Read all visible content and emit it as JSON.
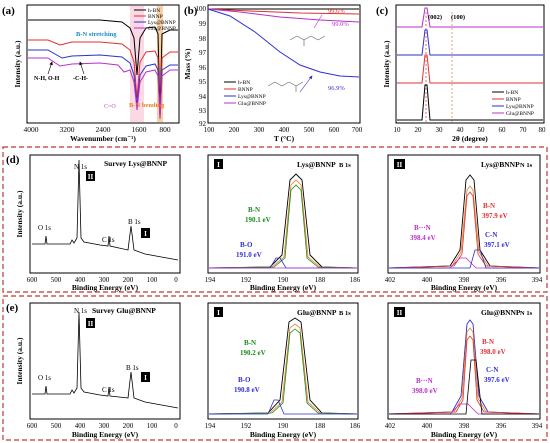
{
  "panels": {
    "a": {
      "label": "(a)",
      "xlabel": "Wavenumber (cm⁻¹)",
      "ylabel": "Intensity (a.u.)",
      "xticks": [
        "4000",
        "3200",
        "2400",
        "1600",
        "800"
      ],
      "annotations": {
        "bn_stretch": "B-N stretching",
        "bn_bend": "B-N bending",
        "nh_oh": "N-H, O-H",
        "ch": "-C-H-",
        "co": "C=O"
      },
      "legend": [
        "h-BN",
        "BNNP",
        "Lys@BNNP",
        "Glu@BNNP"
      ]
    },
    "b": {
      "label": "(b)",
      "xlabel": "T (°C)",
      "ylabel": "Mass (%)",
      "xticks": [
        "100",
        "200",
        "300",
        "400",
        "500",
        "600",
        "700"
      ],
      "yticks": [
        "100",
        "99",
        "98",
        "97",
        "96",
        "95",
        "94",
        "93",
        "92"
      ],
      "annotations": {
        "p1": "99.6%",
        "p2": "99.0%",
        "p3": "96.9%"
      },
      "legend": [
        "h-BN",
        "BNNP",
        "Lys@BNNP",
        "Glu@BNNP"
      ]
    },
    "c": {
      "label": "(c)",
      "xlabel": "2θ (degree)",
      "ylabel": "Intensity (a.u.)",
      "xticks": [
        "10",
        "20",
        "30",
        "40",
        "50",
        "60",
        "70",
        "80"
      ],
      "peaks": {
        "p002": "(002)",
        "p100": "(100)"
      },
      "legend": [
        "h-BN",
        "BNNP",
        "Lys@BNNP",
        "Glu@BNNP"
      ]
    },
    "d": {
      "label": "(d)"
    },
    "e": {
      "label": "(e)"
    }
  },
  "survey_d": {
    "title": "Survey Lys@BNNP",
    "xlabel": "Binding Energy (eV)",
    "ylabel": "Intensity (a.u.)",
    "xticks": [
      "600",
      "500",
      "400",
      "300",
      "200",
      "100",
      "0"
    ],
    "peaks": {
      "o": "O 1s",
      "n": "N 1s",
      "c": "C 1s",
      "b": "B 1s"
    },
    "box1": "I",
    "box2": "II"
  },
  "survey_e": {
    "title": "Survey Glu@BNNP",
    "xlabel": "Binding Energy (eV)",
    "ylabel": "Intensity (a.u.)",
    "xticks": [
      "600",
      "500",
      "400",
      "300",
      "200",
      "100",
      "0"
    ],
    "peaks": {
      "o": "O 1s",
      "n": "N 1s",
      "c": "C 1s",
      "b": "B 1s"
    },
    "box1": "I",
    "box2": "II"
  },
  "b1s_d": {
    "box": "I",
    "title": "Lys@BNNP",
    "sub": "B 1s",
    "xlabel": "Binding Energy (eV)",
    "xticks": [
      "194",
      "192",
      "190",
      "188",
      "186"
    ],
    "bn": "B-N",
    "bn_ev": "190.1 eV",
    "bo": "B-O",
    "bo_ev": "191.0 eV"
  },
  "b1s_e": {
    "box": "I",
    "title": "Glu@BNNP",
    "sub": "B 1s",
    "xlabel": "Binding Energy (eV)",
    "xticks": [
      "194",
      "192",
      "190",
      "188",
      "186"
    ],
    "bn": "B-N",
    "bn_ev": "190.2 eV",
    "bo": "B-O",
    "bo_ev": "190.8 eV"
  },
  "n1s_d": {
    "box": "II",
    "title": "Lys@BNNP",
    "sub": "N 1s",
    "xlabel": "Binding Energy (eV)",
    "xticks": [
      "402",
      "400",
      "398",
      "396",
      "394"
    ],
    "bn": "B-N",
    "bn_ev": "397.9 eV",
    "bhn": "B···N",
    "bhn_ev": "398.4 eV",
    "cn": "C-N",
    "cn_ev": "397.1 eV"
  },
  "n1s_e": {
    "box": "II",
    "title": "Glu@BNNP",
    "sub": "N 1s",
    "xlabel": "Binding Energy (eV)",
    "xticks": [
      "402",
      "400",
      "398",
      "396",
      "394"
    ],
    "bn": "B-N",
    "bn_ev": "398.0 eV",
    "bhn": "B···N",
    "bhn_ev": "398.0 eV",
    "cn": "C-N",
    "cn_ev": "397.6 eV"
  },
  "colors": {
    "hbn": "#000000",
    "bnnp": "#e03030",
    "lys": "#2f2fd0",
    "glu": "#b830c8",
    "green": "#1a8a1a",
    "orange": "#e87c1e",
    "frame": "#c0392b"
  }
}
